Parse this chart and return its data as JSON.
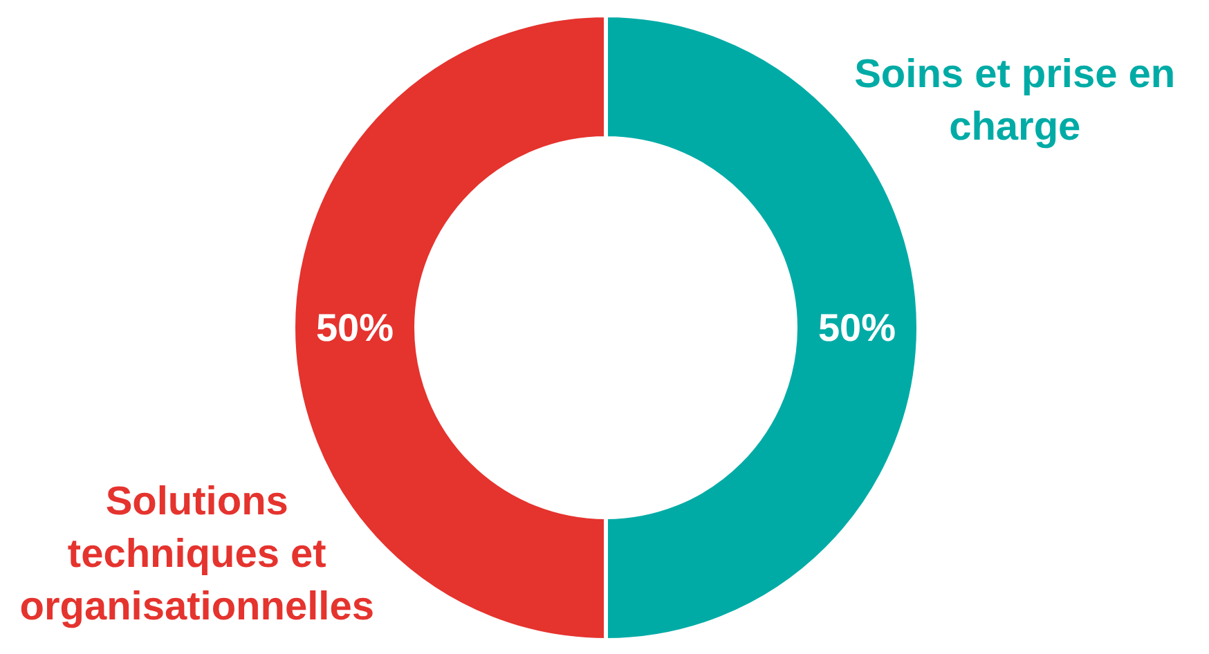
{
  "chart_data": {
    "type": "donut",
    "categories": [
      "Soins et prise en charge",
      "Solutions techniques et organisationnelles"
    ],
    "values": [
      50,
      50
    ],
    "colors": [
      "#00aba6",
      "#e5332e"
    ],
    "value_labels": [
      "50%",
      "50%"
    ],
    "legend": false
  }
}
